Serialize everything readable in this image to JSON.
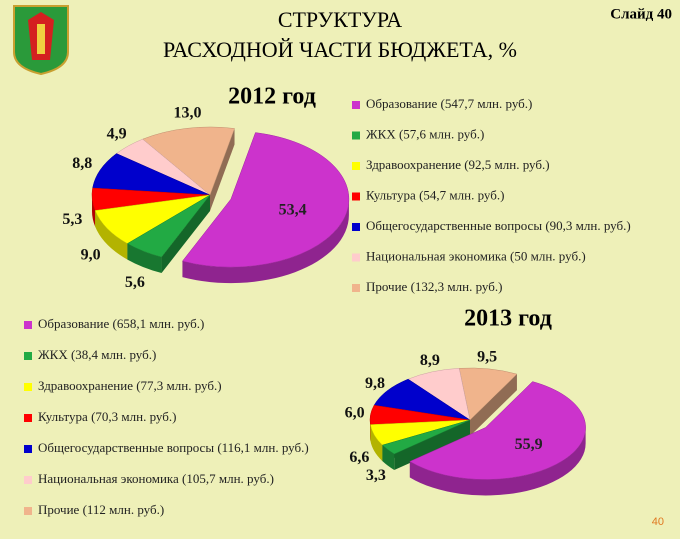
{
  "header": {
    "title": [
      "СТРУКТУРА",
      "РАСХОДНОЙ ЧАСТИ БЮДЖЕТА, %"
    ],
    "slide_label": "Слайд 40"
  },
  "page_number": "40",
  "chart_data": [
    {
      "type": "pie",
      "title": "2012 год",
      "categories": [
        "Образование (547,7 млн. руб.)",
        "ЖКХ (57,6 млн. руб.)",
        "Здравоохранение (92,5 млн. руб.)",
        "Культура (54,7 млн. руб.)",
        "Общегосударственные вопросы (90,3 млн. руб.)",
        "Национальная экономика (50 млн. руб.)",
        "Прочие (132,3 млн. руб.)"
      ],
      "values": [
        53.4,
        5.6,
        9.0,
        5.3,
        8.8,
        4.9,
        13.0
      ],
      "value_labels": [
        "53,4",
        "5,6",
        "9,0",
        "5,3",
        "8,8",
        "4,9",
        "13,0"
      ],
      "colors": [
        "#cc33cc",
        "#22aa44",
        "#ffff00",
        "#ff0000",
        "#0000cc",
        "#ffcccc",
        "#f0b48c"
      ]
    },
    {
      "type": "pie",
      "title": "2013 год",
      "categories": [
        "Образование (658,1 млн. руб.)",
        "ЖКХ (38,4 млн. руб.)",
        "Здравоохранение (77,3 млн. руб.)",
        "Культура (70,3 млн. руб.)",
        "Общегосударственные вопросы (116,1 млн. руб.)",
        "Национальная экономика (105,7 млн. руб.)",
        "Прочие (112 млн. руб.)"
      ],
      "values": [
        55.9,
        3.3,
        6.6,
        6.0,
        9.8,
        8.9,
        9.5
      ],
      "value_labels": [
        "55,9",
        "3,3",
        "6,6",
        "6,0",
        "9,8",
        "8,9",
        "9,5"
      ],
      "colors": [
        "#cc33cc",
        "#22aa44",
        "#ffff00",
        "#ff0000",
        "#0000cc",
        "#ffcccc",
        "#f0b48c"
      ]
    }
  ]
}
